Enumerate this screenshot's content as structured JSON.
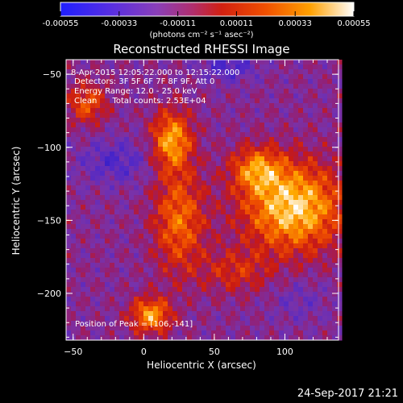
{
  "chart_data": {
    "type": "heatmap",
    "title": "Reconstructed RHESSI Image",
    "xlabel": "Heliocentric X (arcsec)",
    "ylabel": "Heliocentric Y (arcsec)",
    "xlim": [
      -55,
      138
    ],
    "ylim": [
      -232,
      -40
    ],
    "x_ticks": [
      "-50",
      "0",
      "50",
      "100"
    ],
    "y_ticks": [
      "-50",
      "-100",
      "-150",
      "-200"
    ],
    "colorbar": {
      "ticks": [
        "-0.00055",
        "-0.00033",
        "-0.00011",
        "0.00011",
        "0.00033",
        "0.00055"
      ],
      "units_label": "(photons cm⁻² s⁻¹ asec⁻²)",
      "range": [
        -0.00055,
        0.00055
      ]
    },
    "annotations": {
      "time_range": "8-Apr-2015 12:05:22.000 to 12:15:22.000",
      "detectors": "Detectors: 3F 5F 6F 7F 8F 9F, Att 0",
      "energy": "Energy Range: 12.0 - 25.0 keV",
      "clean": "Clean      Total counts: 2.53E+04",
      "peak": "Position of Peak = [106,-141]"
    },
    "peak_position": [
      106,
      -141
    ],
    "date_stamp": "24-Sep-2017 21:21"
  }
}
